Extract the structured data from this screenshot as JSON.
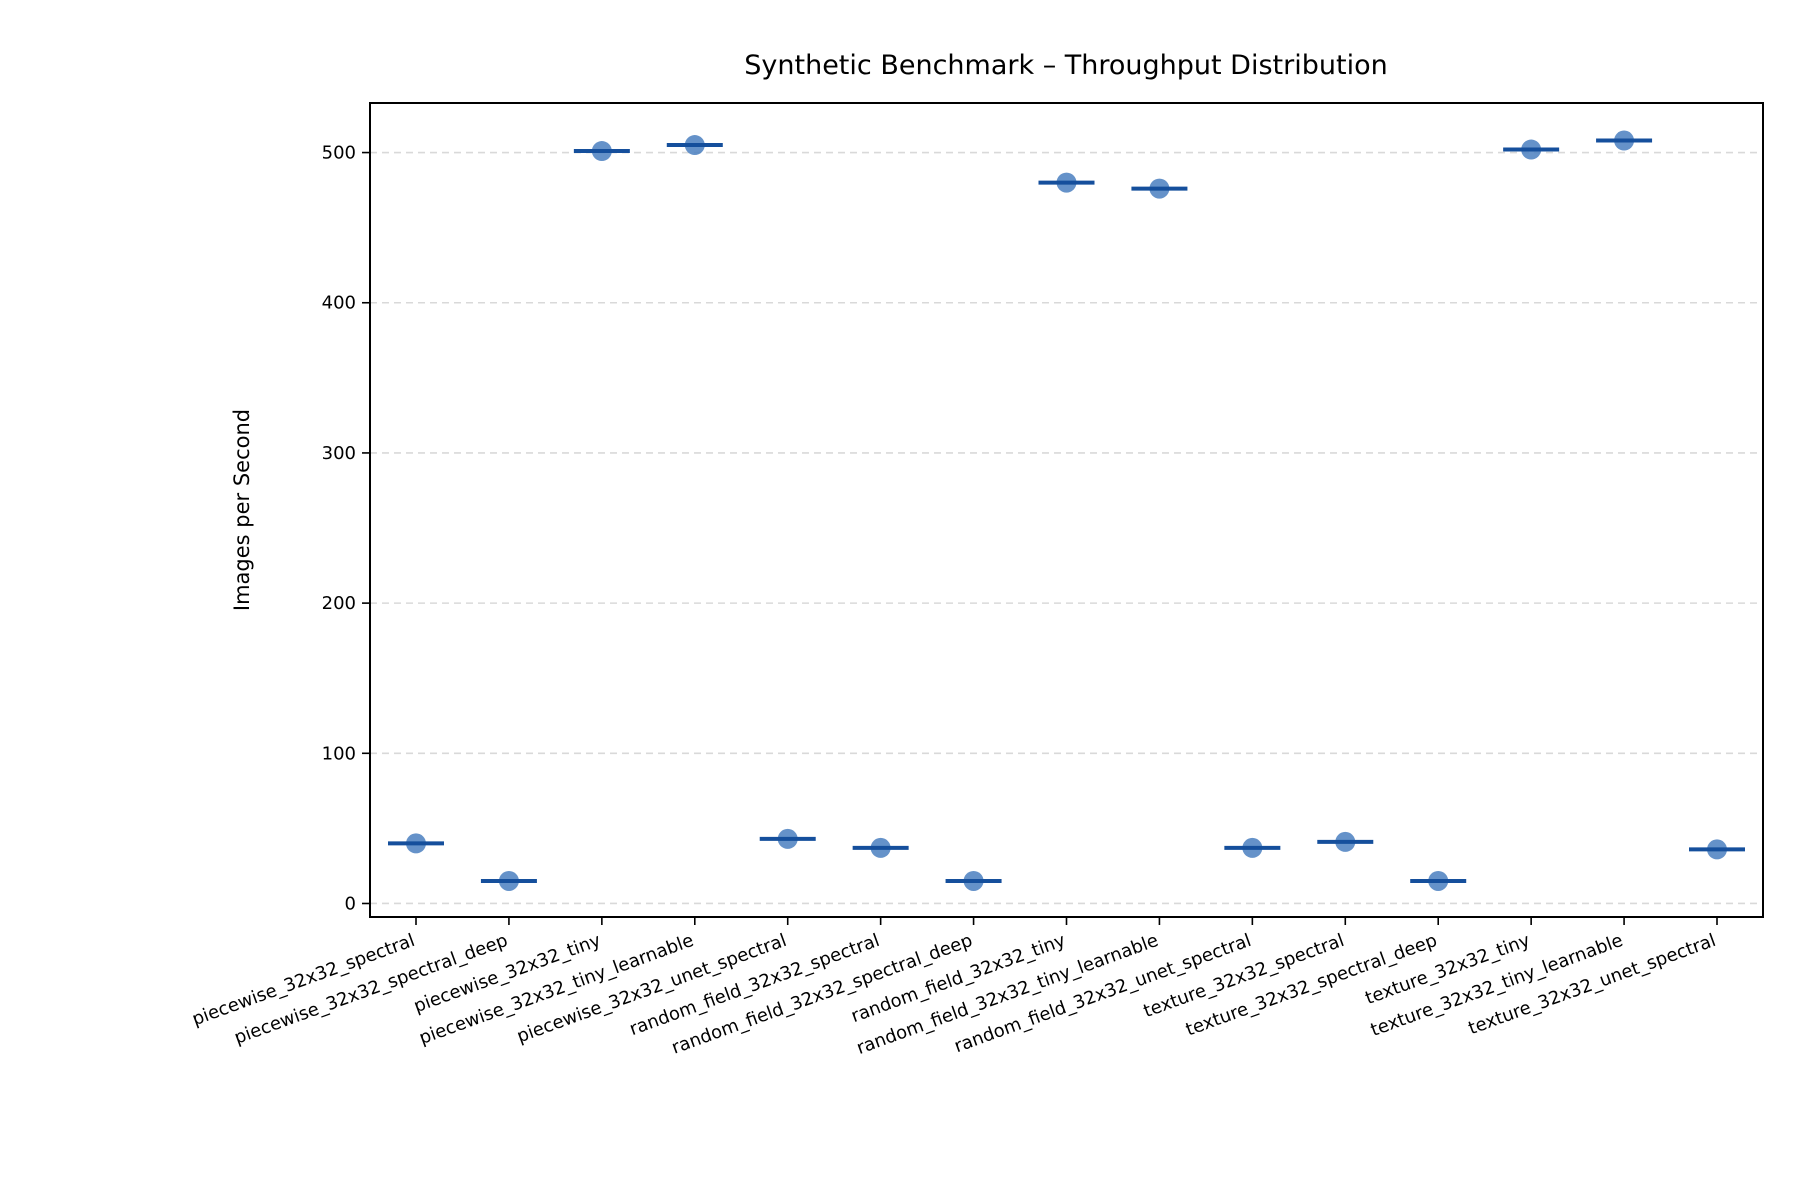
{
  "chart_data": {
    "type": "scatter",
    "title": "Synthetic Benchmark – Throughput Distribution",
    "xlabel": "",
    "ylabel": "Images per Second",
    "ylim": [
      -9,
      533
    ],
    "yticks": [
      0,
      100,
      200,
      300,
      400,
      500
    ],
    "grid": "horizontal dashed",
    "legend": "none",
    "colors": {
      "point": "#4a7fbf",
      "median": "#154f9c",
      "grid": "#d9d9d9"
    },
    "categories": [
      "piecewise_32x32_spectral",
      "piecewise_32x32_spectral_deep",
      "piecewise_32x32_tiny",
      "piecewise_32x32_tiny_learnable",
      "piecewise_32x32_unet_spectral",
      "random_field_32x32_spectral",
      "random_field_32x32_spectral_deep",
      "random_field_32x32_tiny",
      "random_field_32x32_tiny_learnable",
      "random_field_32x32_unet_spectral",
      "texture_32x32_spectral",
      "texture_32x32_spectral_deep",
      "texture_32x32_tiny",
      "texture_32x32_tiny_learnable",
      "texture_32x32_unet_spectral"
    ],
    "values": [
      40,
      15,
      501,
      505,
      43,
      37,
      15,
      480,
      476,
      37,
      41,
      15,
      502,
      508,
      36
    ]
  }
}
